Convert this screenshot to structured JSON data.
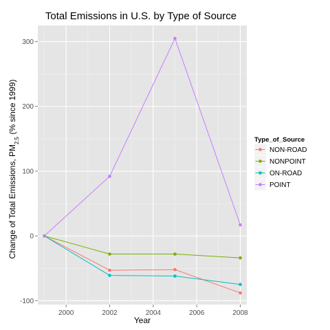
{
  "chart_data": {
    "type": "line",
    "title": "Total Emissions in U.S. by Type of Source",
    "xlabel": "Year",
    "ylabel": {
      "prefix": "Change of Total Emissions, PM",
      "subscript": "2.5",
      "suffix": " (% since 1999)"
    },
    "x": [
      1999,
      2002,
      2005,
      2008
    ],
    "xlim": [
      1998.7,
      2008.3
    ],
    "ylim": [
      -106,
      325
    ],
    "xticks": [
      2000,
      2002,
      2004,
      2006,
      2008
    ],
    "yticks": [
      -100,
      0,
      100,
      200,
      300
    ],
    "xtick_labels": [
      "2000",
      "2002",
      "2004",
      "2006",
      "2008"
    ],
    "ytick_labels": [
      "-100",
      "0",
      "100",
      "200",
      "300"
    ],
    "grid": true,
    "legend": {
      "title": "Type_of_Source",
      "placement": "right"
    },
    "series": [
      {
        "name": "NON-ROAD",
        "color": "#F8766D",
        "values": [
          0,
          -53,
          -52,
          -88
        ]
      },
      {
        "name": "NONPOINT",
        "color": "#7CAE00",
        "values": [
          0,
          -28,
          -28,
          -34
        ]
      },
      {
        "name": "ON-ROAD",
        "color": "#00BFC4",
        "values": [
          0,
          -61,
          -62,
          -75
        ]
      },
      {
        "name": "POINT",
        "color": "#C77CFF",
        "values": [
          0,
          92,
          305,
          17
        ]
      }
    ]
  }
}
